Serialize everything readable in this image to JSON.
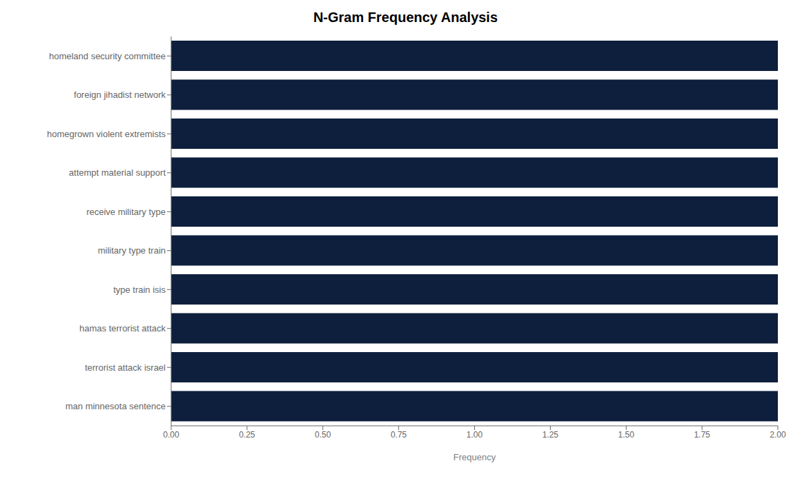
{
  "chart_data": {
    "type": "bar",
    "orientation": "horizontal",
    "title": "N-Gram Frequency Analysis",
    "categories": [
      "man minnesota sentence",
      "terrorist attack israel",
      "hamas terrorist attack",
      "type train isis",
      "military type train",
      "receive military type",
      "attempt material support",
      "homegrown violent extremists",
      "foreign jihadist network",
      "homeland security committee"
    ],
    "values": [
      2.0,
      2.0,
      2.0,
      2.0,
      2.0,
      2.0,
      2.0,
      2.0,
      2.0,
      2.0
    ],
    "color": "#0d1f3c",
    "xlabel": "Frequency",
    "xlim": [
      0,
      2.0
    ],
    "xticks": [
      {
        "value": 0.0,
        "label": "0.00"
      },
      {
        "value": 0.25,
        "label": "0.25"
      },
      {
        "value": 0.5,
        "label": "0.50"
      },
      {
        "value": 0.75,
        "label": "0.75"
      },
      {
        "value": 1.0,
        "label": "1.00"
      },
      {
        "value": 1.25,
        "label": "1.25"
      },
      {
        "value": 1.5,
        "label": "1.50"
      },
      {
        "value": 1.75,
        "label": "1.75"
      },
      {
        "value": 2.0,
        "label": "2.00"
      }
    ],
    "grid": false
  }
}
